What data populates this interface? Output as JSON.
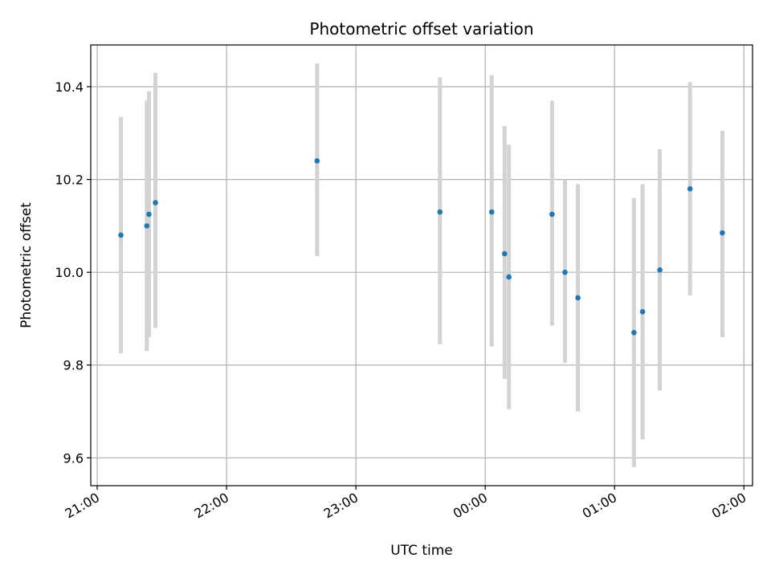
{
  "chart_data": {
    "type": "scatter",
    "title": "Photometric offset variation",
    "xlabel": "UTC time",
    "ylabel": "Photometric offset",
    "x_ticks": [
      "21:00",
      "22:00",
      "23:00",
      "00:00",
      "01:00",
      "02:00"
    ],
    "y_ticks": [
      "9.6",
      "9.8",
      "10.0",
      "10.2",
      "10.4"
    ],
    "xlim": [
      "20:57",
      "02:04"
    ],
    "ylim": [
      9.54,
      10.49
    ],
    "grid": true,
    "marker_color": "#1f77b4",
    "errorbar_color": "#d3d3d3",
    "points": [
      {
        "x": "21:11",
        "y": 10.08,
        "ylow": 9.825,
        "yhigh": 10.335
      },
      {
        "x": "21:23",
        "y": 10.1,
        "ylow": 9.83,
        "yhigh": 10.37
      },
      {
        "x": "21:24",
        "y": 10.125,
        "ylow": 9.86,
        "yhigh": 10.39
      },
      {
        "x": "21:27",
        "y": 10.15,
        "ylow": 9.88,
        "yhigh": 10.43
      },
      {
        "x": "22:42",
        "y": 10.24,
        "ylow": 10.035,
        "yhigh": 10.45
      },
      {
        "x": "23:39",
        "y": 10.13,
        "ylow": 9.845,
        "yhigh": 10.42
      },
      {
        "x": "00:03",
        "y": 10.13,
        "ylow": 9.84,
        "yhigh": 10.425
      },
      {
        "x": "00:09",
        "y": 10.04,
        "ylow": 9.77,
        "yhigh": 10.315
      },
      {
        "x": "00:11",
        "y": 9.99,
        "ylow": 9.705,
        "yhigh": 10.275
      },
      {
        "x": "00:31",
        "y": 10.125,
        "ylow": 9.885,
        "yhigh": 10.37
      },
      {
        "x": "00:37",
        "y": 10.0,
        "ylow": 9.805,
        "yhigh": 10.2
      },
      {
        "x": "00:43",
        "y": 9.945,
        "ylow": 9.7,
        "yhigh": 10.19
      },
      {
        "x": "01:09",
        "y": 9.87,
        "ylow": 9.58,
        "yhigh": 10.16
      },
      {
        "x": "01:13",
        "y": 9.915,
        "ylow": 9.64,
        "yhigh": 10.19
      },
      {
        "x": "01:21",
        "y": 10.005,
        "ylow": 9.745,
        "yhigh": 10.265
      },
      {
        "x": "01:35",
        "y": 10.18,
        "ylow": 9.95,
        "yhigh": 10.41
      },
      {
        "x": "01:50",
        "y": 10.085,
        "ylow": 9.86,
        "yhigh": 10.305
      }
    ]
  }
}
